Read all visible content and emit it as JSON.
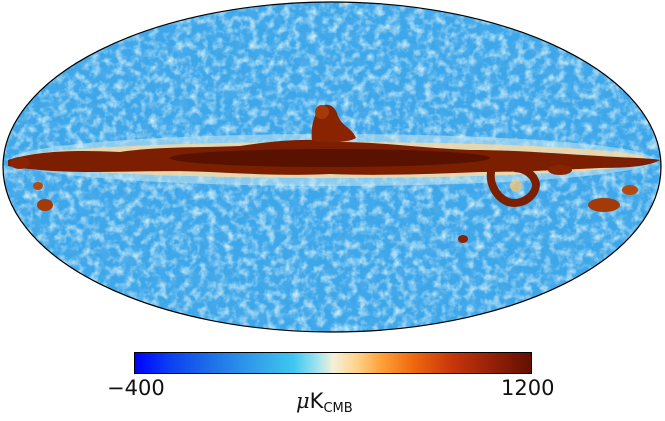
{
  "figure": {
    "colorbar": {
      "min_label": "−400",
      "max_label": "1200",
      "unit": {
        "prefix": "μ",
        "main": "K",
        "sub": "CMB"
      },
      "colors": {
        "cold": "#0000ff",
        "mid": "#f4f0d8",
        "hot": "#641000"
      }
    },
    "map": {
      "projection": "mollweide",
      "colors": {
        "background_blue": "#3ea7ea",
        "light_blue": "#a5dcf0",
        "dark_blue": "#1e7fd9",
        "hot_band": "#7b1f00",
        "edge": "#000000"
      }
    }
  }
}
